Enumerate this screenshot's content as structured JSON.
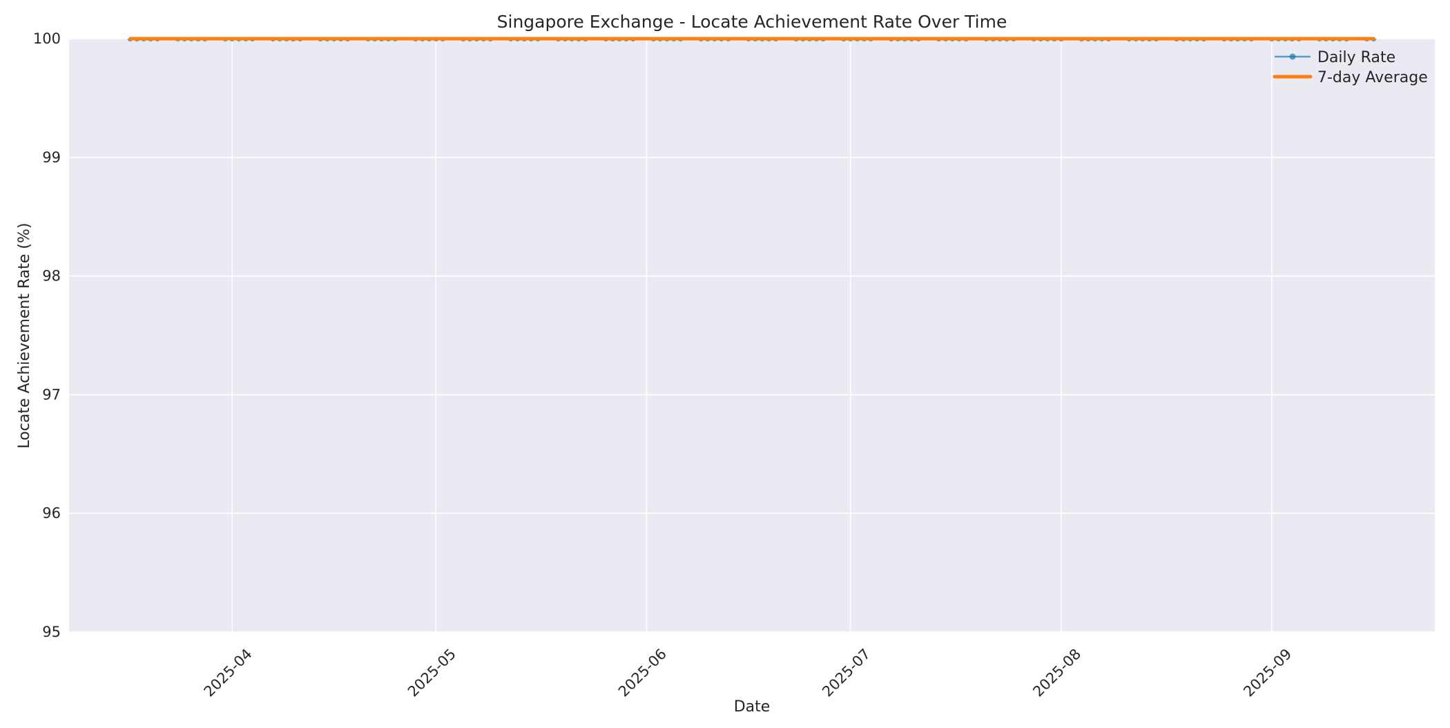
{
  "chart_data": {
    "type": "line",
    "title": "Singapore Exchange - Locate Achievement Rate Over Time",
    "xlabel": "Date",
    "ylabel": "Locate Achievement Rate (%)",
    "ylim": [
      95,
      100
    ],
    "yticks": [
      95,
      96,
      97,
      98,
      99,
      100
    ],
    "ytick_labels": [
      "95",
      "96",
      "97",
      "98",
      "99",
      "100"
    ],
    "x_domain": [
      "2025-03-08",
      "2025-09-25"
    ],
    "xticks": [
      "2025-04-01",
      "2025-05-01",
      "2025-06-01",
      "2025-07-01",
      "2025-08-01",
      "2025-09-01"
    ],
    "xtick_labels": [
      "2025-04",
      "2025-05",
      "2025-06",
      "2025-07",
      "2025-08",
      "2025-09"
    ],
    "xtick_rotation_deg": 45,
    "grid": true,
    "plot_background": "#eaeaf2",
    "grid_color": "#ffffff",
    "legend_position": "upper right",
    "series": [
      {
        "name": "Daily Rate",
        "color": "#1f77b4",
        "alpha": 0.7,
        "marker": "circle",
        "linewidth": 2.2,
        "dates": [
          "2025-03-17",
          "2025-03-18",
          "2025-03-19",
          "2025-03-20",
          "2025-03-21",
          "2025-03-24",
          "2025-03-25",
          "2025-03-26",
          "2025-03-27",
          "2025-03-28",
          "2025-03-31",
          "2025-04-01",
          "2025-04-02",
          "2025-04-03",
          "2025-04-04",
          "2025-04-07",
          "2025-04-08",
          "2025-04-09",
          "2025-04-10",
          "2025-04-11",
          "2025-04-14",
          "2025-04-15",
          "2025-04-16",
          "2025-04-17",
          "2025-04-18",
          "2025-04-21",
          "2025-04-22",
          "2025-04-23",
          "2025-04-24",
          "2025-04-25",
          "2025-04-28",
          "2025-04-29",
          "2025-04-30",
          "2025-05-01",
          "2025-05-02",
          "2025-05-05",
          "2025-05-06",
          "2025-05-07",
          "2025-05-08",
          "2025-05-09",
          "2025-05-12",
          "2025-05-13",
          "2025-05-14",
          "2025-05-15",
          "2025-05-16",
          "2025-05-19",
          "2025-05-20",
          "2025-05-21",
          "2025-05-22",
          "2025-05-23",
          "2025-05-26",
          "2025-05-27",
          "2025-05-28",
          "2025-05-29",
          "2025-05-30",
          "2025-06-02",
          "2025-06-03",
          "2025-06-04",
          "2025-06-05",
          "2025-06-06",
          "2025-06-09",
          "2025-06-10",
          "2025-06-11",
          "2025-06-12",
          "2025-06-13",
          "2025-06-16",
          "2025-06-17",
          "2025-06-18",
          "2025-06-19",
          "2025-06-20",
          "2025-06-23",
          "2025-06-24",
          "2025-06-25",
          "2025-06-26",
          "2025-06-27",
          "2025-06-30",
          "2025-07-01",
          "2025-07-02",
          "2025-07-03",
          "2025-07-04",
          "2025-07-07",
          "2025-07-08",
          "2025-07-09",
          "2025-07-10",
          "2025-07-11",
          "2025-07-14",
          "2025-07-15",
          "2025-07-16",
          "2025-07-17",
          "2025-07-18",
          "2025-07-21",
          "2025-07-22",
          "2025-07-23",
          "2025-07-24",
          "2025-07-25",
          "2025-07-28",
          "2025-07-29",
          "2025-07-30",
          "2025-07-31",
          "2025-08-01",
          "2025-08-04",
          "2025-08-05",
          "2025-08-06",
          "2025-08-07",
          "2025-08-08",
          "2025-08-11",
          "2025-08-12",
          "2025-08-13",
          "2025-08-14",
          "2025-08-15",
          "2025-08-18",
          "2025-08-19",
          "2025-08-20",
          "2025-08-21",
          "2025-08-22",
          "2025-08-25",
          "2025-08-26",
          "2025-08-27",
          "2025-08-28",
          "2025-08-29",
          "2025-09-01",
          "2025-09-02",
          "2025-09-03",
          "2025-09-04",
          "2025-09-05",
          "2025-09-08",
          "2025-09-09",
          "2025-09-10",
          "2025-09-11",
          "2025-09-12",
          "2025-09-15",
          "2025-09-16"
        ],
        "values": [
          100.0,
          100.0,
          100.0,
          100.0,
          100.0,
          100.0,
          100.0,
          100.0,
          100.0,
          100.0,
          100.0,
          100.0,
          100.0,
          100.0,
          100.0,
          100.0,
          100.0,
          100.0,
          100.0,
          100.0,
          100.0,
          100.0,
          100.0,
          100.0,
          100.0,
          100.0,
          100.0,
          100.0,
          100.0,
          100.0,
          100.0,
          100.0,
          100.0,
          100.0,
          100.0,
          100.0,
          100.0,
          100.0,
          100.0,
          100.0,
          100.0,
          100.0,
          100.0,
          100.0,
          100.0,
          100.0,
          100.0,
          100.0,
          100.0,
          100.0,
          100.0,
          100.0,
          100.0,
          100.0,
          100.0,
          100.0,
          100.0,
          100.0,
          100.0,
          100.0,
          100.0,
          100.0,
          100.0,
          100.0,
          100.0,
          100.0,
          100.0,
          100.0,
          100.0,
          100.0,
          100.0,
          100.0,
          100.0,
          100.0,
          100.0,
          100.0,
          100.0,
          100.0,
          100.0,
          100.0,
          100.0,
          100.0,
          100.0,
          100.0,
          100.0,
          100.0,
          100.0,
          100.0,
          100.0,
          100.0,
          100.0,
          100.0,
          100.0,
          100.0,
          100.0,
          100.0,
          100.0,
          100.0,
          100.0,
          100.0,
          100.0,
          100.0,
          100.0,
          100.0,
          100.0,
          100.0,
          100.0,
          100.0,
          100.0,
          100.0,
          100.0,
          100.0,
          100.0,
          100.0,
          100.0,
          100.0,
          100.0,
          100.0,
          100.0,
          100.0,
          100.0,
          100.0,
          100.0,
          100.0,
          100.0,
          100.0,
          100.0,
          100.0,
          100.0,
          100.0,
          100.0,
          100.0
        ]
      },
      {
        "name": "7-day Average",
        "color": "#ff7f0e",
        "alpha": 1.0,
        "marker": "none",
        "linewidth": 5,
        "dates": [
          "2025-03-17",
          "2025-03-18",
          "2025-03-19",
          "2025-03-20",
          "2025-03-21",
          "2025-03-24",
          "2025-03-25",
          "2025-03-26",
          "2025-03-27",
          "2025-03-28",
          "2025-03-31",
          "2025-04-01",
          "2025-04-02",
          "2025-04-03",
          "2025-04-04",
          "2025-04-07",
          "2025-04-08",
          "2025-04-09",
          "2025-04-10",
          "2025-04-11",
          "2025-04-14",
          "2025-04-15",
          "2025-04-16",
          "2025-04-17",
          "2025-04-18",
          "2025-04-21",
          "2025-04-22",
          "2025-04-23",
          "2025-04-24",
          "2025-04-25",
          "2025-04-28",
          "2025-04-29",
          "2025-04-30",
          "2025-05-01",
          "2025-05-02",
          "2025-05-05",
          "2025-05-06",
          "2025-05-07",
          "2025-05-08",
          "2025-05-09",
          "2025-05-12",
          "2025-05-13",
          "2025-05-14",
          "2025-05-15",
          "2025-05-16",
          "2025-05-19",
          "2025-05-20",
          "2025-05-21",
          "2025-05-22",
          "2025-05-23",
          "2025-05-26",
          "2025-05-27",
          "2025-05-28",
          "2025-05-29",
          "2025-05-30",
          "2025-06-02",
          "2025-06-03",
          "2025-06-04",
          "2025-06-05",
          "2025-06-06",
          "2025-06-09",
          "2025-06-10",
          "2025-06-11",
          "2025-06-12",
          "2025-06-13",
          "2025-06-16",
          "2025-06-17",
          "2025-06-18",
          "2025-06-19",
          "2025-06-20",
          "2025-06-23",
          "2025-06-24",
          "2025-06-25",
          "2025-06-26",
          "2025-06-27",
          "2025-06-30",
          "2025-07-01",
          "2025-07-02",
          "2025-07-03",
          "2025-07-04",
          "2025-07-07",
          "2025-07-08",
          "2025-07-09",
          "2025-07-10",
          "2025-07-11",
          "2025-07-14",
          "2025-07-15",
          "2025-07-16",
          "2025-07-17",
          "2025-07-18",
          "2025-07-21",
          "2025-07-22",
          "2025-07-23",
          "2025-07-24",
          "2025-07-25",
          "2025-07-28",
          "2025-07-29",
          "2025-07-30",
          "2025-07-31",
          "2025-08-01",
          "2025-08-04",
          "2025-08-05",
          "2025-08-06",
          "2025-08-07",
          "2025-08-08",
          "2025-08-11",
          "2025-08-12",
          "2025-08-13",
          "2025-08-14",
          "2025-08-15",
          "2025-08-18",
          "2025-08-19",
          "2025-08-20",
          "2025-08-21",
          "2025-08-22",
          "2025-08-25",
          "2025-08-26",
          "2025-08-27",
          "2025-08-28",
          "2025-08-29",
          "2025-09-01",
          "2025-09-02",
          "2025-09-03",
          "2025-09-04",
          "2025-09-05",
          "2025-09-08",
          "2025-09-09",
          "2025-09-10",
          "2025-09-11",
          "2025-09-12",
          "2025-09-15",
          "2025-09-16"
        ],
        "values": [
          100.0,
          100.0,
          100.0,
          100.0,
          100.0,
          100.0,
          100.0,
          100.0,
          100.0,
          100.0,
          100.0,
          100.0,
          100.0,
          100.0,
          100.0,
          100.0,
          100.0,
          100.0,
          100.0,
          100.0,
          100.0,
          100.0,
          100.0,
          100.0,
          100.0,
          100.0,
          100.0,
          100.0,
          100.0,
          100.0,
          100.0,
          100.0,
          100.0,
          100.0,
          100.0,
          100.0,
          100.0,
          100.0,
          100.0,
          100.0,
          100.0,
          100.0,
          100.0,
          100.0,
          100.0,
          100.0,
          100.0,
          100.0,
          100.0,
          100.0,
          100.0,
          100.0,
          100.0,
          100.0,
          100.0,
          100.0,
          100.0,
          100.0,
          100.0,
          100.0,
          100.0,
          100.0,
          100.0,
          100.0,
          100.0,
          100.0,
          100.0,
          100.0,
          100.0,
          100.0,
          100.0,
          100.0,
          100.0,
          100.0,
          100.0,
          100.0,
          100.0,
          100.0,
          100.0,
          100.0,
          100.0,
          100.0,
          100.0,
          100.0,
          100.0,
          100.0,
          100.0,
          100.0,
          100.0,
          100.0,
          100.0,
          100.0,
          100.0,
          100.0,
          100.0,
          100.0,
          100.0,
          100.0,
          100.0,
          100.0,
          100.0,
          100.0,
          100.0,
          100.0,
          100.0,
          100.0,
          100.0,
          100.0,
          100.0,
          100.0,
          100.0,
          100.0,
          100.0,
          100.0,
          100.0,
          100.0,
          100.0,
          100.0,
          100.0,
          100.0,
          100.0,
          100.0,
          100.0,
          100.0,
          100.0,
          100.0,
          100.0,
          100.0,
          100.0,
          100.0,
          100.0,
          100.0
        ]
      }
    ],
    "legend": {
      "entries": [
        {
          "label": "Daily Rate"
        },
        {
          "label": "7-day Average"
        }
      ]
    }
  }
}
